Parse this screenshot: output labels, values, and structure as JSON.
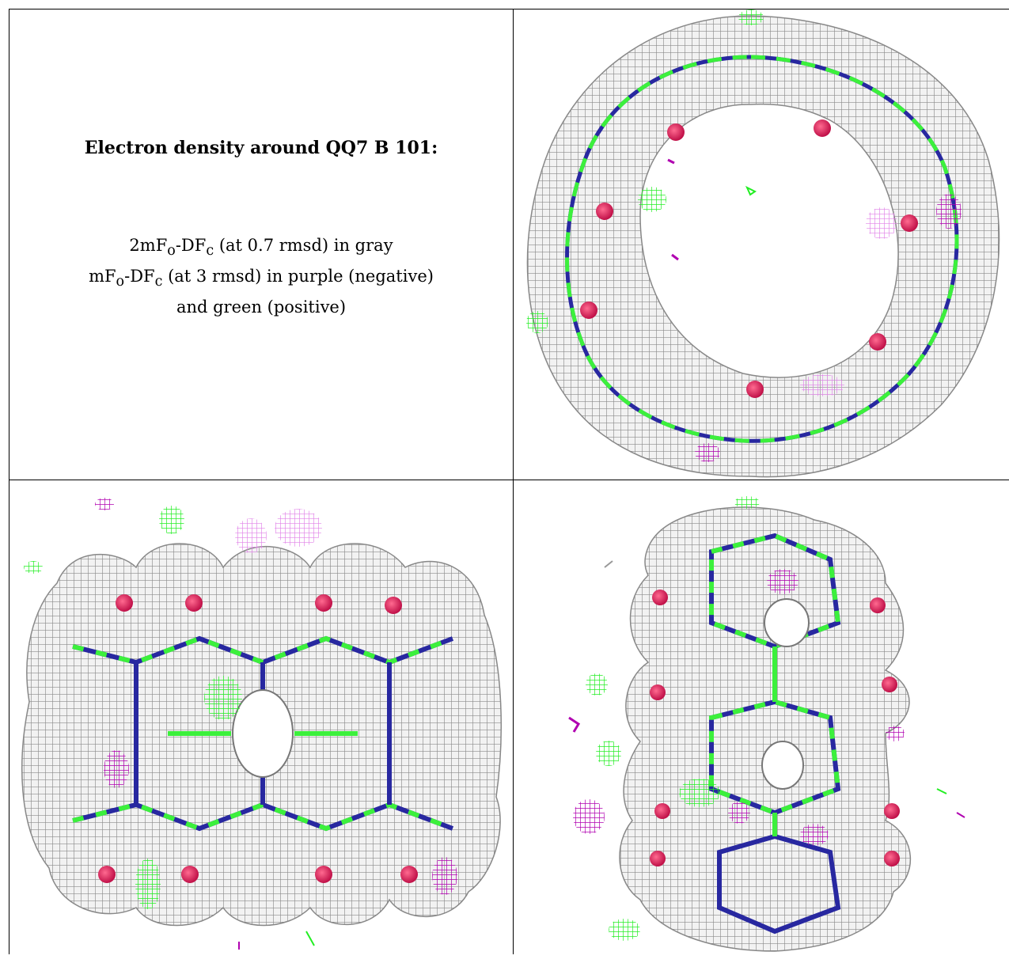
{
  "legend": {
    "title": "Electron density around QQ7 B 101:",
    "line1": {
      "a": "2mF",
      "a_sub": "o",
      "b": "-DF",
      "b_sub": "c",
      "rest": " (at 0.7 rmsd) in gray"
    },
    "line2": {
      "a": "mF",
      "a_sub": "o",
      "b": "-DF",
      "b_sub": "c",
      "rest": " (at 3 rmsd) in purple (negative)"
    },
    "line3": "and green (positive)"
  },
  "colors": {
    "mesh_2fofc": "#9a9a9a",
    "mesh_fofc_negative": "#b000b0",
    "mesh_fofc_positive": "#22ee22",
    "carbon": "#3cf03c",
    "nitrogen": "#2828a0",
    "oxygen": "#e0205a"
  },
  "views": [
    {
      "name": "top-down-view"
    },
    {
      "name": "side-view"
    },
    {
      "name": "tilted-side-view"
    }
  ]
}
